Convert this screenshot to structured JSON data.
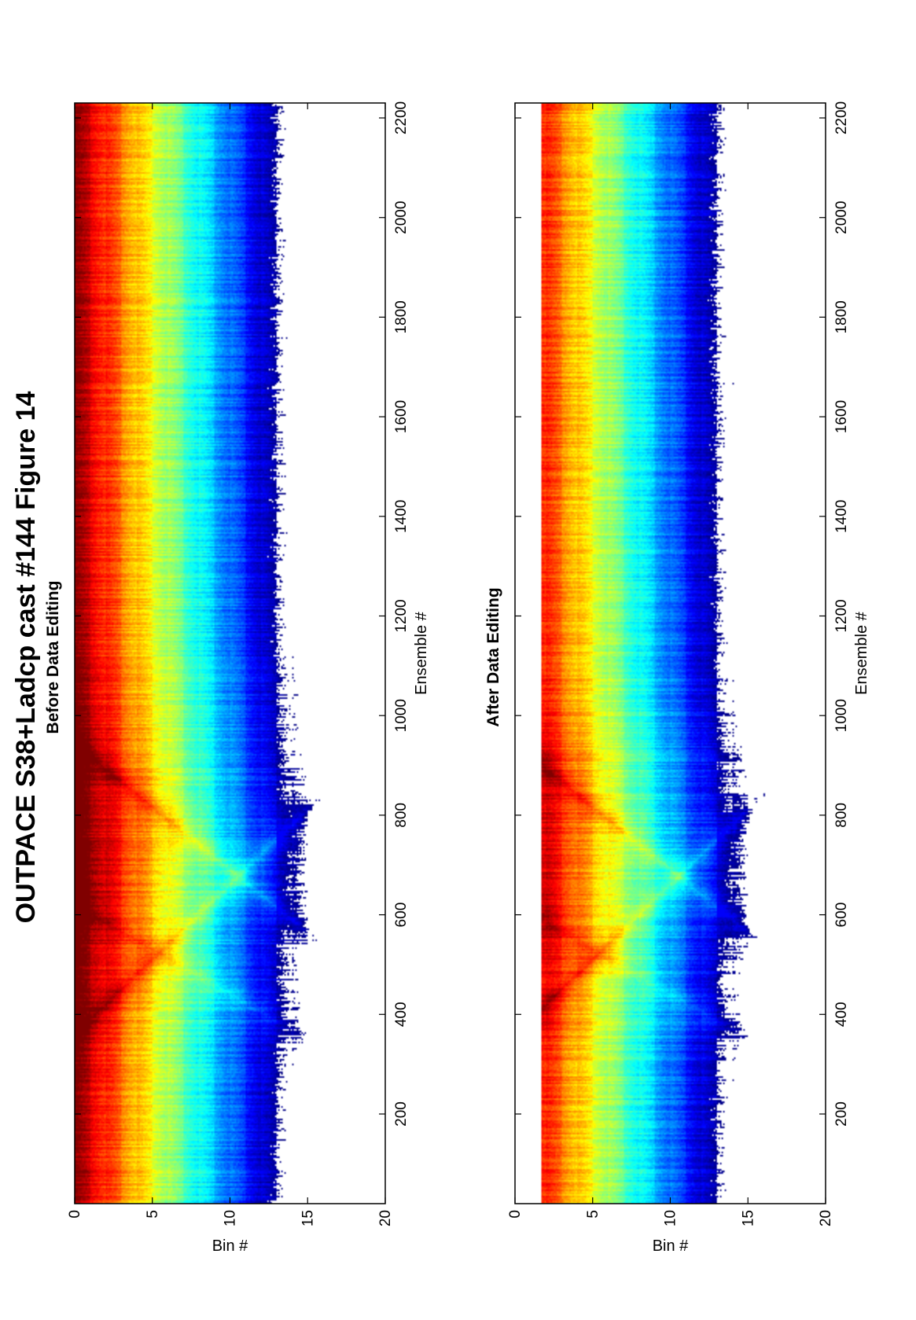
{
  "figure": {
    "title": "OUTPACE S38+Ladcp cast #144  Figure 14"
  },
  "chart_data": [
    {
      "type": "heatmap",
      "title": "Before Data Editing",
      "xlabel": "Ensemble #",
      "ylabel": "Bin #",
      "xlim": [
        20,
        2230
      ],
      "ylim": [
        0,
        20
      ],
      "xticks": [
        200,
        400,
        600,
        800,
        1000,
        1200,
        1400,
        1600,
        1800,
        2000,
        2200
      ],
      "yticks": [
        0,
        5,
        10,
        15,
        20
      ],
      "bins": 20,
      "colormap": "jet",
      "gaps_white": true
    },
    {
      "type": "heatmap",
      "title": "After Data Editing",
      "xlabel": "Ensemble #",
      "ylabel": "Bin #",
      "xlim": [
        20,
        2230
      ],
      "ylim": [
        0,
        20
      ],
      "xticks": [
        200,
        400,
        600,
        800,
        1000,
        1200,
        1400,
        1600,
        1800,
        2000,
        2200
      ],
      "yticks": [
        0,
        5,
        10,
        15,
        20
      ],
      "bins": 20,
      "colormap": "jet",
      "gaps_white": true
    }
  ]
}
